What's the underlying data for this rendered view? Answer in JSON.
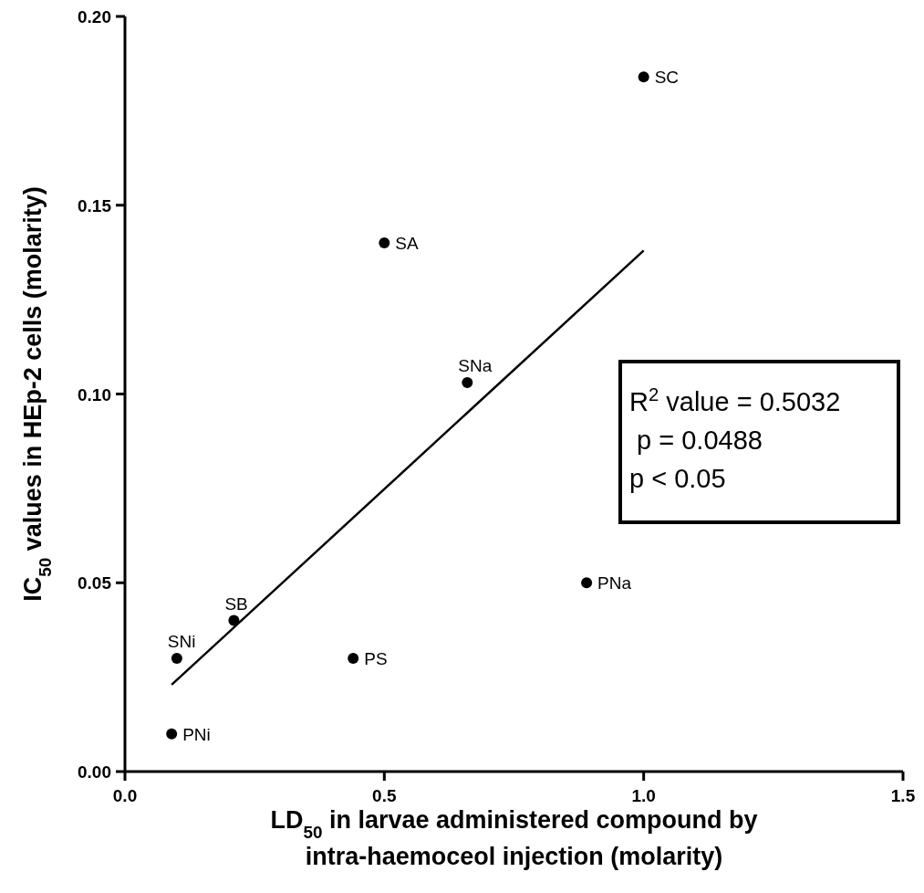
{
  "chart_data": {
    "type": "scatter",
    "xlabel": "LD$_{50}$ in larvae administered compound by\nintra-haemoceol injection (molarity)",
    "ylabel": "IC$_{50}$ values in HEp-2 cells (molarity)",
    "xlim": [
      0,
      1.5
    ],
    "xticks": [
      {
        "value": 0,
        "label": "0.0"
      },
      {
        "value": 0.5,
        "label": "0.5"
      },
      {
        "value": 1,
        "label": "1.0"
      },
      {
        "value": 1.5,
        "label": "1.5"
      }
    ],
    "ylim": [
      0,
      0.2
    ],
    "yticks": [
      {
        "value": 0,
        "label": "0.00"
      },
      {
        "value": 0.05,
        "label": "0.05"
      },
      {
        "value": 0.1,
        "label": "0.10"
      },
      {
        "value": 0.15,
        "label": "0.15"
      },
      {
        "value": 0.2,
        "label": "0.20"
      }
    ],
    "grid": false,
    "marker": "circle",
    "series": [
      {
        "color": "#000000",
        "x": [
          1.0,
          0.5,
          0.66,
          0.89,
          0.21,
          0.1,
          0.44,
          0.09
        ],
        "values": [
          0.184,
          0.14,
          0.103,
          0.05,
          0.04,
          0.03,
          0.03,
          0.01
        ]
      },
      {
        "type": "line",
        "color": "#000000",
        "marker": "none",
        "line_style": "solid",
        "x": [
          0.09,
          1.0
        ],
        "values": [
          0.023,
          0.138
        ]
      }
    ],
    "annotations": [
      {
        "text": "SC",
        "x": 1.0,
        "y": 0.184
      },
      {
        "text": "SA",
        "x": 0.5,
        "y": 0.14
      },
      {
        "text": "SNa",
        "x": 0.66,
        "y": 0.103
      },
      {
        "text": "PNa",
        "x": 0.89,
        "y": 0.05
      },
      {
        "text": "SB",
        "x": 0.21,
        "y": 0.04
      },
      {
        "text": "SNi",
        "x": 0.1,
        "y": 0.03
      },
      {
        "text": "PS",
        "x": 0.44,
        "y": 0.03
      },
      {
        "text": "PNi",
        "x": 0.09,
        "y": 0.01
      },
      "R$^{2}$ value = 0.5032",
      " p = 0.0488",
      "p < 0.05"
    ]
  }
}
